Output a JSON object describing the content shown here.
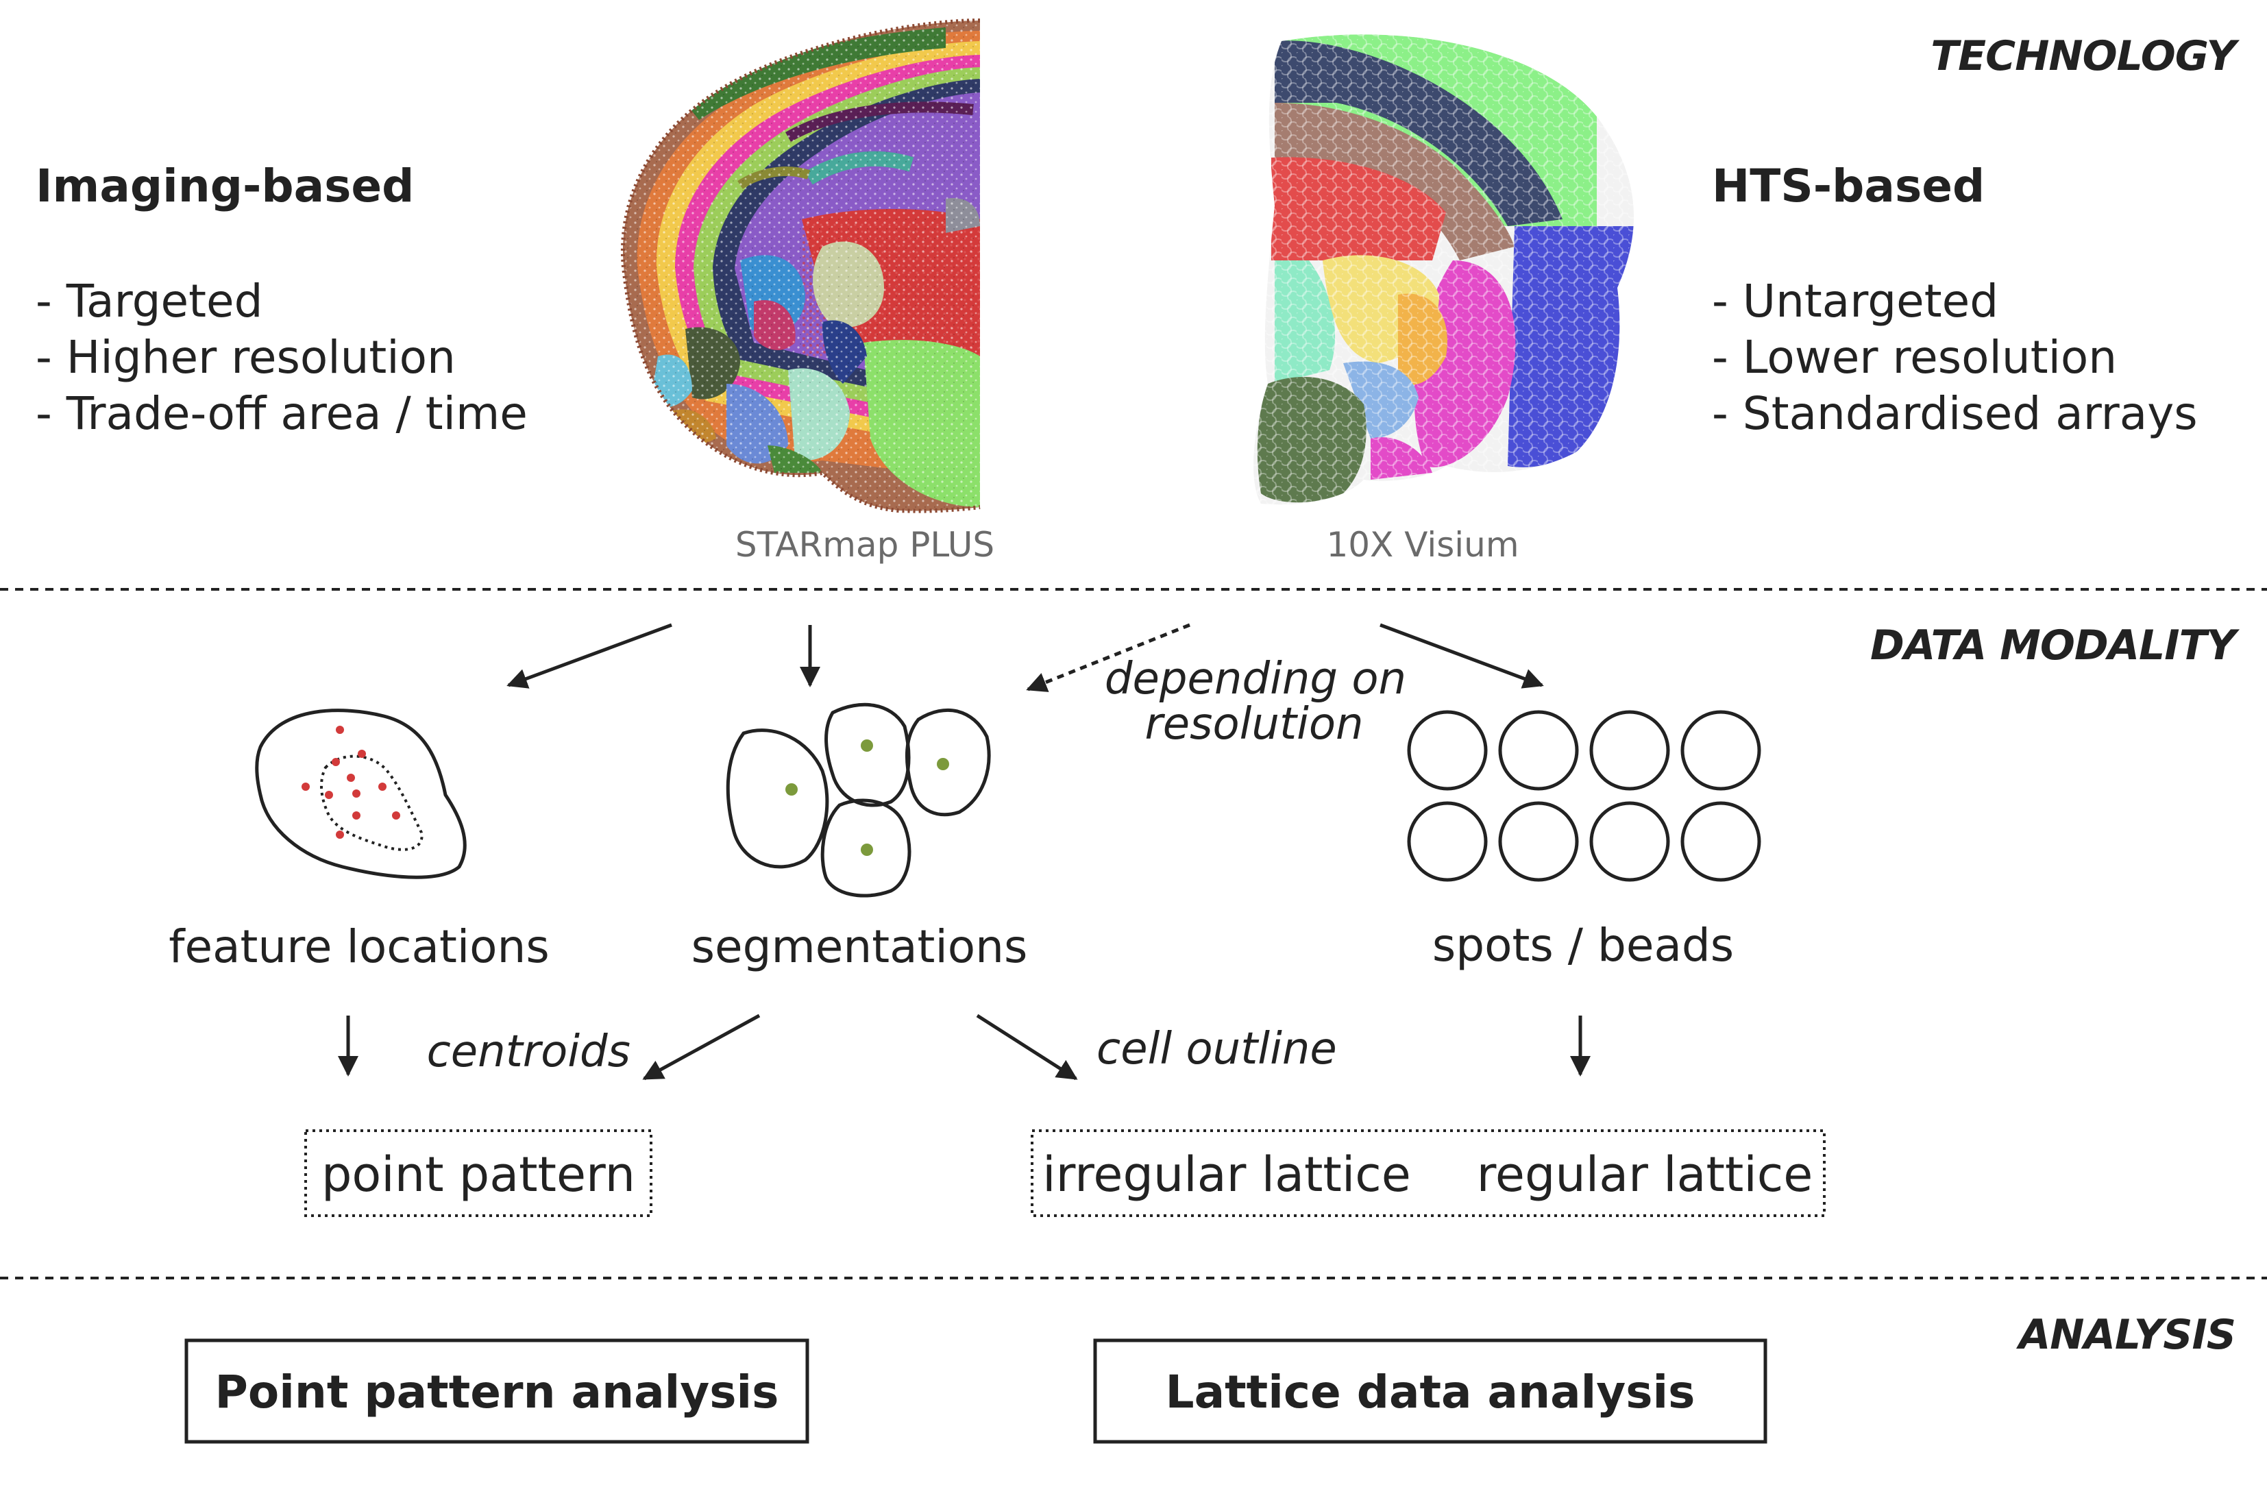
{
  "sections": {
    "technology": "TECHNOLOGY",
    "data_modality": "DATA MODALITY",
    "analysis": "ANALYSIS"
  },
  "imaging": {
    "heading": "Imaging-based",
    "bullets": [
      "- Targeted",
      "- Higher resolution",
      "- Trade-off area / time"
    ],
    "image_caption": "STARmap PLUS"
  },
  "hts": {
    "heading": "HTS-based",
    "bullets": [
      "- Untargeted",
      "- Lower resolution",
      "- Standardised arrays"
    ],
    "image_caption": "10X Visium"
  },
  "modalities": {
    "feature_locations": "feature locations",
    "segmentations": "segmentations",
    "spots_beads": "spots / beads",
    "depending_line1": "depending on",
    "depending_line2": "resolution"
  },
  "edges": {
    "centroids": "centroids",
    "cell_outline": "cell outline"
  },
  "data_types": {
    "point_pattern": "point pattern",
    "irregular_lattice": "irregular lattice",
    "regular_lattice": "regular lattice"
  },
  "analyses": {
    "point_pattern_analysis": "Point pattern analysis",
    "lattice_data_analysis": "Lattice data analysis"
  },
  "colors": {
    "text": "#222222",
    "caption": "#6a6a6a",
    "feature_dot": "#d23a3a",
    "centroid_dot": "#7c9a3c"
  }
}
